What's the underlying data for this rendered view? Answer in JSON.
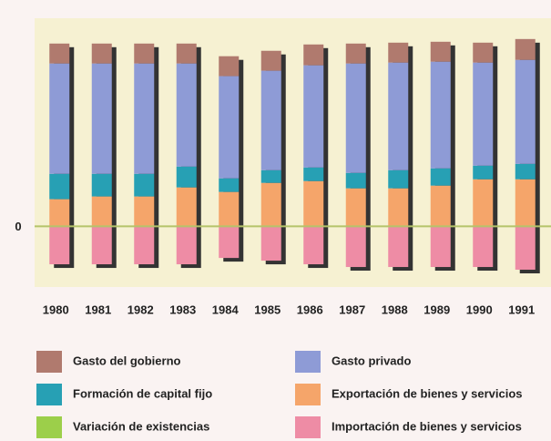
{
  "chart_data": {
    "type": "bar",
    "stacked": true,
    "categories": [
      "1980",
      "1981",
      "1982",
      "1983",
      "1984",
      "1985",
      "1986",
      "1987",
      "1988",
      "1989",
      "1990",
      "1991"
    ],
    "series": [
      {
        "name": "Gasto del gobierno",
        "color": "#b07a6e",
        "values": [
          22,
          22,
          22,
          22,
          22,
          22,
          23,
          22,
          22,
          22,
          22,
          23
        ]
      },
      {
        "name": "Gasto privado",
        "color": "#8e9bd6",
        "values": [
          122,
          122,
          122,
          114,
          113,
          110,
          113,
          121,
          119,
          118,
          114,
          115
        ]
      },
      {
        "name": "Formación de capital fijo",
        "color": "#27a0b4",
        "values": [
          28,
          25,
          25,
          23,
          15,
          14,
          15,
          17,
          20,
          19,
          15,
          17
        ]
      },
      {
        "name": "Exportación de bienes y servicios",
        "color": "#f5a56a",
        "values": [
          30,
          33,
          33,
          43,
          38,
          48,
          50,
          42,
          42,
          45,
          52,
          52
        ]
      },
      {
        "name": "Variación de existencias",
        "color": "#9ccf4a",
        "values": [
          0,
          0,
          0,
          0,
          0,
          0,
          0,
          0,
          0,
          0,
          0,
          0
        ]
      },
      {
        "name": "Importación de bienes y servicios",
        "color": "#ee8ca5",
        "values": [
          -42,
          -42,
          -42,
          -42,
          -35,
          -38,
          -42,
          -45,
          -45,
          -45,
          -45,
          -48
        ]
      }
    ],
    "ylim": [
      -50,
      230
    ],
    "yticks": [
      0
    ]
  }
}
